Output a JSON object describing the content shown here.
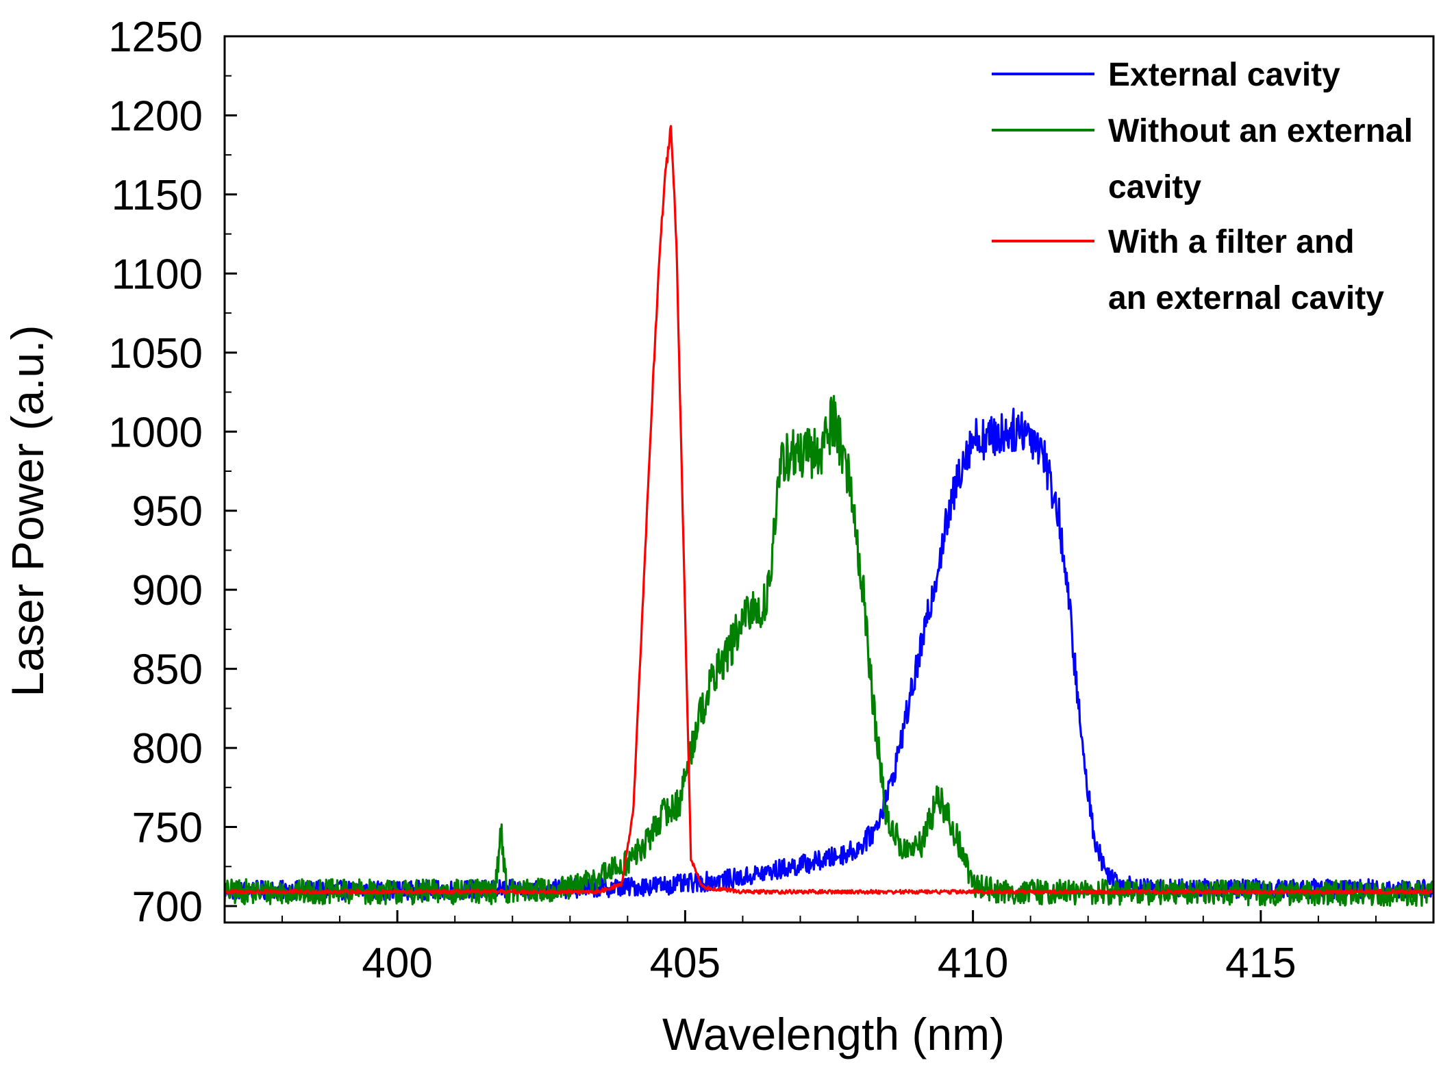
{
  "chart_data": {
    "type": "line",
    "title": "",
    "xlabel": "Wavelength (nm)",
    "ylabel": "Laser Power (a.u.)",
    "xlim": [
      397,
      418
    ],
    "ylim": [
      690,
      1250
    ],
    "x_ticks": [
      400,
      405,
      410,
      415
    ],
    "x_minor_step": 1,
    "y_ticks": [
      700,
      750,
      800,
      850,
      900,
      950,
      1000,
      1050,
      1100,
      1150,
      1200,
      1250
    ],
    "y_minor_step": 25,
    "grid": false,
    "legend_position": "top-right",
    "series": [
      {
        "name": "External cavity",
        "color": "#0000ff",
        "noise": 6,
        "x": [
          397,
          400,
          403,
          404,
          405,
          405.5,
          406,
          406.5,
          407,
          407.5,
          408,
          408.3,
          408.6,
          408.9,
          409.2,
          409.5,
          409.8,
          410.0,
          410.3,
          410.6,
          410.9,
          411.2,
          411.5,
          411.7,
          411.9,
          412.1,
          412.3,
          412.6,
          413,
          418
        ],
        "values": [
          710,
          710,
          711,
          712,
          714,
          716,
          718,
          722,
          726,
          730,
          736,
          748,
          780,
          830,
          880,
          935,
          980,
          996,
          996,
          1000,
          1002,
          990,
          945,
          880,
          800,
          745,
          722,
          714,
          711,
          711
        ]
      },
      {
        "name": "Without an external cavity",
        "color": "#008000",
        "noise": 8,
        "x": [
          397,
          401.7,
          401.8,
          401.9,
          403,
          403.6,
          404.0,
          404.3,
          404.6,
          404.9,
          405.2,
          405.5,
          405.8,
          406.1,
          406.4,
          406.7,
          407.0,
          407.3,
          407.6,
          407.9,
          408.1,
          408.3,
          408.5,
          408.8,
          409.1,
          409.4,
          409.7,
          410.0,
          410.5,
          418
        ],
        "values": [
          709,
          709,
          750,
          709,
          711,
          720,
          728,
          738,
          758,
          765,
          815,
          845,
          865,
          885,
          890,
          985,
          985,
          985,
          1010,
          960,
          895,
          815,
          755,
          735,
          738,
          770,
          745,
          714,
          709,
          708
        ]
      },
      {
        "name": "With a filter and an external cavity",
        "color": "#ff0000",
        "noise": 1.2,
        "x": [
          397,
          403.5,
          403.9,
          404.1,
          404.25,
          404.4,
          404.55,
          404.65,
          404.75,
          404.85,
          404.95,
          405.1,
          405.3,
          406,
          418
        ],
        "values": [
          709,
          709,
          714,
          760,
          880,
          1000,
          1110,
          1160,
          1192,
          1120,
          960,
          730,
          712,
          709,
          709
        ]
      }
    ],
    "legend": [
      {
        "lines": [
          "External cavity"
        ],
        "color": "#0000ff"
      },
      {
        "lines": [
          "Without an external",
          "cavity"
        ],
        "color": "#008000"
      },
      {
        "lines": [
          "With a filter and",
          "an external cavity"
        ],
        "color": "#ff0000"
      }
    ]
  }
}
